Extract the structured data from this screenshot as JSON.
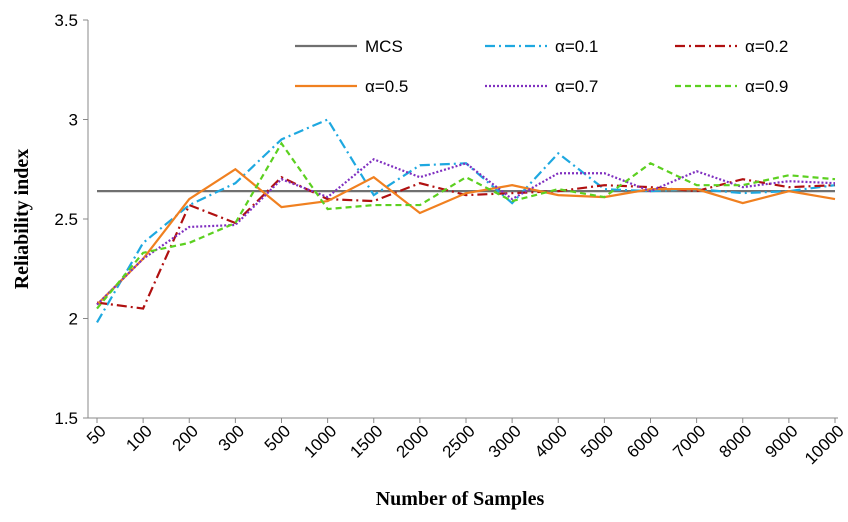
{
  "chart_data": {
    "type": "line",
    "x_label": "Number of Samples",
    "y_label": "Reliability index",
    "categories": [
      "50",
      "100",
      "200",
      "300",
      "500",
      "1000",
      "1500",
      "2000",
      "2500",
      "3000",
      "4000",
      "5000",
      "6000",
      "7000",
      "8000",
      "9000",
      "10000"
    ],
    "ylim": [
      1.5,
      3.5
    ],
    "yticks": [
      3.5,
      3,
      2.5,
      2,
      1.5
    ],
    "grid": false,
    "legend": "top",
    "series": [
      {
        "name": "MCS",
        "color": "#707070",
        "dash": "solid",
        "values": [
          2.64,
          2.64,
          2.64,
          2.64,
          2.64,
          2.64,
          2.64,
          2.64,
          2.64,
          2.64,
          2.64,
          2.64,
          2.64,
          2.64,
          2.64,
          2.64,
          2.64
        ]
      },
      {
        "name": "α=0.1",
        "color": "#1ea8e0",
        "dash": "dashdot",
        "values": [
          1.98,
          2.38,
          2.57,
          2.68,
          2.9,
          3.0,
          2.62,
          2.77,
          2.78,
          2.58,
          2.83,
          2.65,
          2.64,
          2.65,
          2.63,
          2.64,
          2.67
        ]
      },
      {
        "name": "α=0.2",
        "color": "#b01010",
        "dash": "dashdot",
        "values": [
          2.08,
          2.05,
          2.57,
          2.48,
          2.71,
          2.6,
          2.59,
          2.68,
          2.62,
          2.63,
          2.64,
          2.67,
          2.66,
          2.64,
          2.7,
          2.66,
          2.67
        ]
      },
      {
        "name": "α=0.5",
        "color": "#f08020",
        "dash": "solid",
        "values": [
          2.07,
          2.3,
          2.6,
          2.75,
          2.56,
          2.59,
          2.71,
          2.53,
          2.63,
          2.67,
          2.62,
          2.61,
          2.65,
          2.65,
          2.58,
          2.64,
          2.6
        ]
      },
      {
        "name": "α=0.7",
        "color": "#8030c0",
        "dash": "dotted",
        "values": [
          2.07,
          2.3,
          2.46,
          2.47,
          2.7,
          2.61,
          2.8,
          2.71,
          2.78,
          2.6,
          2.73,
          2.73,
          2.64,
          2.74,
          2.66,
          2.69,
          2.68
        ]
      },
      {
        "name": "α=0.9",
        "color": "#5cd020",
        "dash": "dashed",
        "values": [
          2.05,
          2.33,
          2.38,
          2.48,
          2.88,
          2.55,
          2.57,
          2.57,
          2.71,
          2.59,
          2.65,
          2.61,
          2.78,
          2.67,
          2.67,
          2.72,
          2.7
        ]
      }
    ]
  }
}
